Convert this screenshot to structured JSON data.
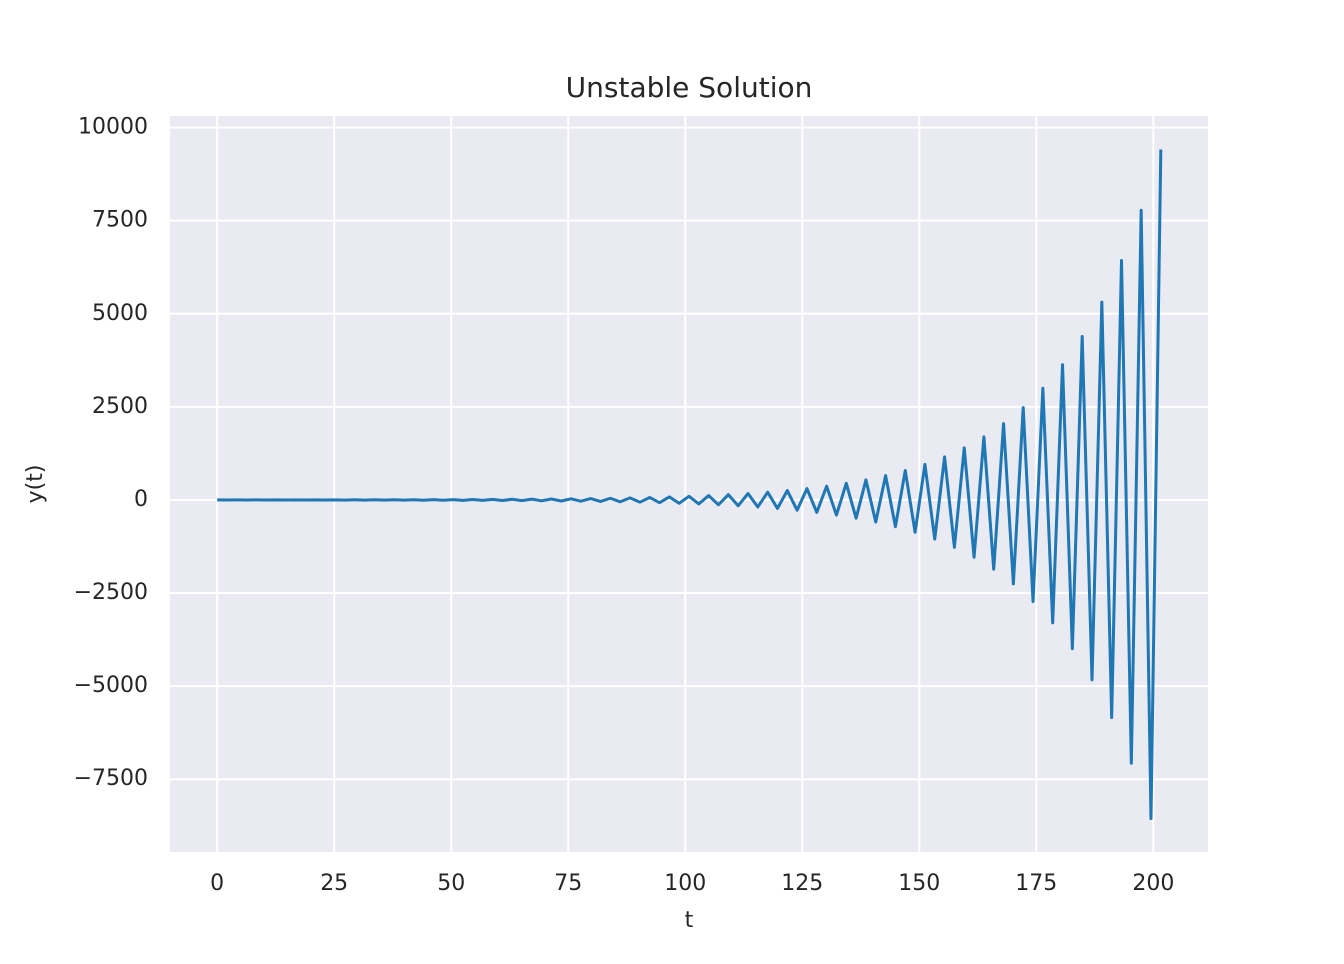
{
  "chart_data": {
    "type": "line",
    "title": "Unstable Solution",
    "x_label": "t",
    "y_label": "y(t)",
    "x": [
      0,
      2.1,
      4.2,
      6.3,
      8.4,
      10.5,
      12.6,
      14.7,
      16.8,
      18.9,
      21,
      23.1,
      25.2,
      27.3,
      29.4,
      31.5,
      33.6,
      35.7,
      37.8,
      39.9,
      42,
      44.1,
      46.2,
      48.3,
      50.4,
      52.5,
      54.6,
      56.7,
      58.8,
      60.9,
      63,
      65.1,
      67.2,
      69.3,
      71.4,
      73.5,
      75.6,
      77.7,
      79.8,
      81.9,
      84,
      86.1,
      88.2,
      90.3,
      92.4,
      94.5,
      96.6,
      98.7,
      100.8,
      102.9,
      105,
      107.1,
      109.2,
      111.3,
      113.4,
      115.5,
      117.6,
      119.7,
      121.8,
      123.9,
      126,
      128.1,
      130.2,
      132.3,
      134.4,
      136.5,
      138.6,
      140.7,
      142.8,
      144.9,
      147,
      149.1,
      151.2,
      153.3,
      155.4,
      157.5,
      159.6,
      161.7,
      163.8,
      165.9,
      168,
      170.1,
      172.2,
      174.3,
      176.4,
      178.5,
      180.6,
      182.7,
      184.8,
      186.9,
      189,
      191.1,
      193.2,
      195.3,
      197.4,
      199.5,
      201.6
    ],
    "values": [
      1,
      -1.1,
      1.2,
      -1.3,
      1.5,
      -1.6,
      1.8,
      -1.9,
      2.1,
      -2.4,
      2.6,
      -2.9,
      3.1,
      -3.5,
      3.8,
      -4.2,
      4.6,
      -5.1,
      5.6,
      -6.1,
      6.7,
      -7.4,
      8.1,
      -9,
      9.8,
      -10.8,
      11.9,
      -13.1,
      14.4,
      -15.9,
      17.4,
      -19.2,
      21.1,
      -23.2,
      25.5,
      -28.1,
      30.9,
      -34,
      37.4,
      -41.1,
      45.3,
      -49.8,
      54.8,
      -60.2,
      66.3,
      -72.9,
      80.2,
      -88.2,
      97,
      -106.7,
      117.4,
      -129.1,
      142,
      -156.3,
      171.9,
      -189.1,
      208,
      -228.8,
      251.6,
      -276.8,
      304.5,
      -334.9,
      368.4,
      -405.3,
      445.8,
      -490.4,
      539.4,
      -593.4,
      652.7,
      -718,
      789.7,
      -868.7,
      955.6,
      -1051.2,
      1156.3,
      -1271.9,
      1399.1,
      -1539,
      1692.9,
      -1862.2,
      2048.4,
      -2253.2,
      2478.6,
      -2726.4,
      2999.1,
      -3299,
      3628.9,
      -3991.8,
      4391,
      -4830.1,
      5313.1,
      -5844.4,
      6428.8,
      -7071.7,
      7778.9,
      -8556.8,
      9412.4
    ],
    "color": "#1f77b4",
    "xlim": [
      -10.08,
      211.68
    ],
    "xticks": [
      0,
      25,
      50,
      75,
      100,
      125,
      150,
      175,
      200
    ],
    "ylim": [
      -9455,
      10311
    ],
    "yticks": [
      {
        "value": -7500,
        "label": "−7500"
      },
      {
        "value": -5000,
        "label": "−5000"
      },
      {
        "value": -2500,
        "label": "−2500"
      },
      0,
      2500,
      5000,
      7500,
      10000
    ],
    "grid": true
  }
}
